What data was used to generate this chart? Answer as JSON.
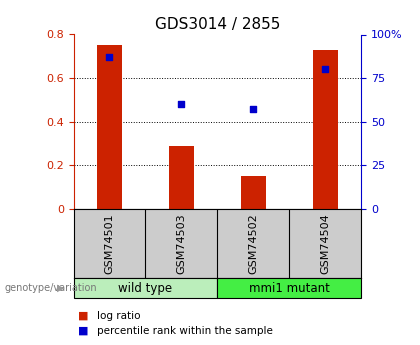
{
  "title": "GDS3014 / 2855",
  "samples": [
    "GSM74501",
    "GSM74503",
    "GSM74502",
    "GSM74504"
  ],
  "log_ratio": [
    0.75,
    0.29,
    0.15,
    0.73
  ],
  "percentile_rank_pct": [
    87,
    60,
    57,
    80
  ],
  "bar_color": "#cc2200",
  "square_color": "#0000cc",
  "left_ylim": [
    0,
    0.8
  ],
  "right_ylim": [
    0,
    100
  ],
  "left_yticks": [
    0,
    0.2,
    0.4,
    0.6,
    0.8
  ],
  "right_yticks": [
    0,
    25,
    50,
    75,
    100
  ],
  "left_yticklabels": [
    "0",
    "0.2",
    "0.4",
    "0.6",
    "0.8"
  ],
  "right_yticklabels": [
    "0",
    "25",
    "50",
    "75",
    "100%"
  ],
  "groups": [
    {
      "label": "wild type",
      "indices": [
        0,
        1
      ],
      "color": "#bbeebb"
    },
    {
      "label": "mmi1 mutant",
      "indices": [
        2,
        3
      ],
      "color": "#44ee44"
    }
  ],
  "group_label_prefix": "genotype/variation",
  "legend_bar_label": "log ratio",
  "legend_square_label": "percentile rank within the sample",
  "bar_width": 0.35,
  "label_bg_color": "#cccccc",
  "title_fontsize": 11,
  "tick_fontsize": 8,
  "sample_fontsize": 8
}
